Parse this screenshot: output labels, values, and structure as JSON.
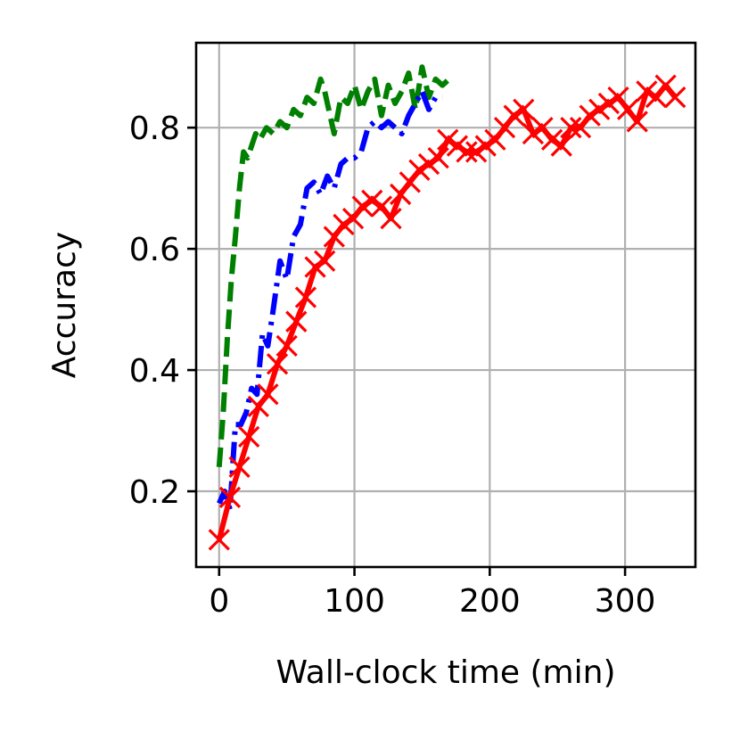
{
  "chart_data": {
    "type": "line",
    "title": "",
    "xlabel": "Wall-clock time (min)",
    "ylabel": "Accuracy",
    "xlim": [
      -17,
      352
    ],
    "ylim": [
      0.075,
      0.94
    ],
    "xticks": [
      0,
      100,
      200,
      300
    ],
    "xtick_labels": [
      "0",
      "100",
      "200",
      "300"
    ],
    "yticks": [
      0.2,
      0.4,
      0.6,
      0.8
    ],
    "ytick_labels": [
      "0.2",
      "0.4",
      "0.6",
      "0.8"
    ],
    "grid": true,
    "legend": "none",
    "series": [
      {
        "color": "#008000",
        "linestyle": "dashed",
        "marker": "none",
        "x": [
          0,
          3,
          6,
          9,
          12,
          15,
          18,
          21,
          24,
          27,
          30,
          35,
          40,
          45,
          50,
          55,
          60,
          65,
          70,
          75,
          78,
          80,
          85,
          90,
          95,
          100,
          105,
          110,
          115,
          120,
          125,
          130,
          135,
          140,
          145,
          150,
          155,
          160,
          165,
          170
        ],
        "y": [
          0.24,
          0.33,
          0.45,
          0.55,
          0.62,
          0.7,
          0.76,
          0.75,
          0.77,
          0.79,
          0.78,
          0.8,
          0.79,
          0.81,
          0.8,
          0.83,
          0.82,
          0.85,
          0.84,
          0.88,
          0.86,
          0.84,
          0.79,
          0.85,
          0.84,
          0.87,
          0.83,
          0.86,
          0.88,
          0.82,
          0.87,
          0.84,
          0.86,
          0.89,
          0.83,
          0.9,
          0.85,
          0.88,
          0.87,
          0.88
        ]
      },
      {
        "color": "#0000ff",
        "linestyle": "dashdot",
        "marker": "none",
        "x": [
          0,
          4,
          8,
          12,
          16,
          20,
          24,
          28,
          32,
          36,
          40,
          45,
          50,
          55,
          60,
          65,
          70,
          75,
          80,
          85,
          90,
          95,
          100,
          105,
          110,
          115,
          120,
          125,
          130,
          135,
          140,
          145,
          150,
          155,
          160,
          165
        ],
        "y": [
          0.18,
          0.2,
          0.17,
          0.31,
          0.31,
          0.33,
          0.37,
          0.36,
          0.46,
          0.44,
          0.5,
          0.58,
          0.55,
          0.62,
          0.64,
          0.7,
          0.71,
          0.69,
          0.72,
          0.7,
          0.74,
          0.75,
          0.75,
          0.76,
          0.8,
          0.81,
          0.8,
          0.81,
          0.8,
          0.79,
          0.82,
          0.84,
          0.86,
          0.83,
          0.85,
          0.85
        ]
      },
      {
        "color": "#ff0000",
        "linestyle": "solid",
        "marker": "x",
        "x": [
          0,
          8,
          15,
          22,
          29,
          36,
          43,
          50,
          57,
          64,
          71,
          78,
          85,
          92,
          99,
          106,
          113,
          120,
          127,
          134,
          141,
          148,
          155,
          162,
          169,
          176,
          183,
          190,
          197,
          204,
          211,
          218,
          225,
          232,
          239,
          246,
          253,
          260,
          267,
          274,
          281,
          288,
          295,
          302,
          309,
          316,
          323,
          330,
          337
        ],
        "y": [
          0.12,
          0.19,
          0.24,
          0.29,
          0.34,
          0.36,
          0.41,
          0.44,
          0.48,
          0.52,
          0.57,
          0.58,
          0.62,
          0.64,
          0.65,
          0.67,
          0.68,
          0.67,
          0.65,
          0.69,
          0.71,
          0.73,
          0.74,
          0.75,
          0.78,
          0.77,
          0.76,
          0.76,
          0.77,
          0.78,
          0.8,
          0.82,
          0.83,
          0.79,
          0.8,
          0.78,
          0.77,
          0.8,
          0.8,
          0.82,
          0.83,
          0.84,
          0.85,
          0.83,
          0.81,
          0.86,
          0.85,
          0.87,
          0.85
        ]
      }
    ]
  }
}
